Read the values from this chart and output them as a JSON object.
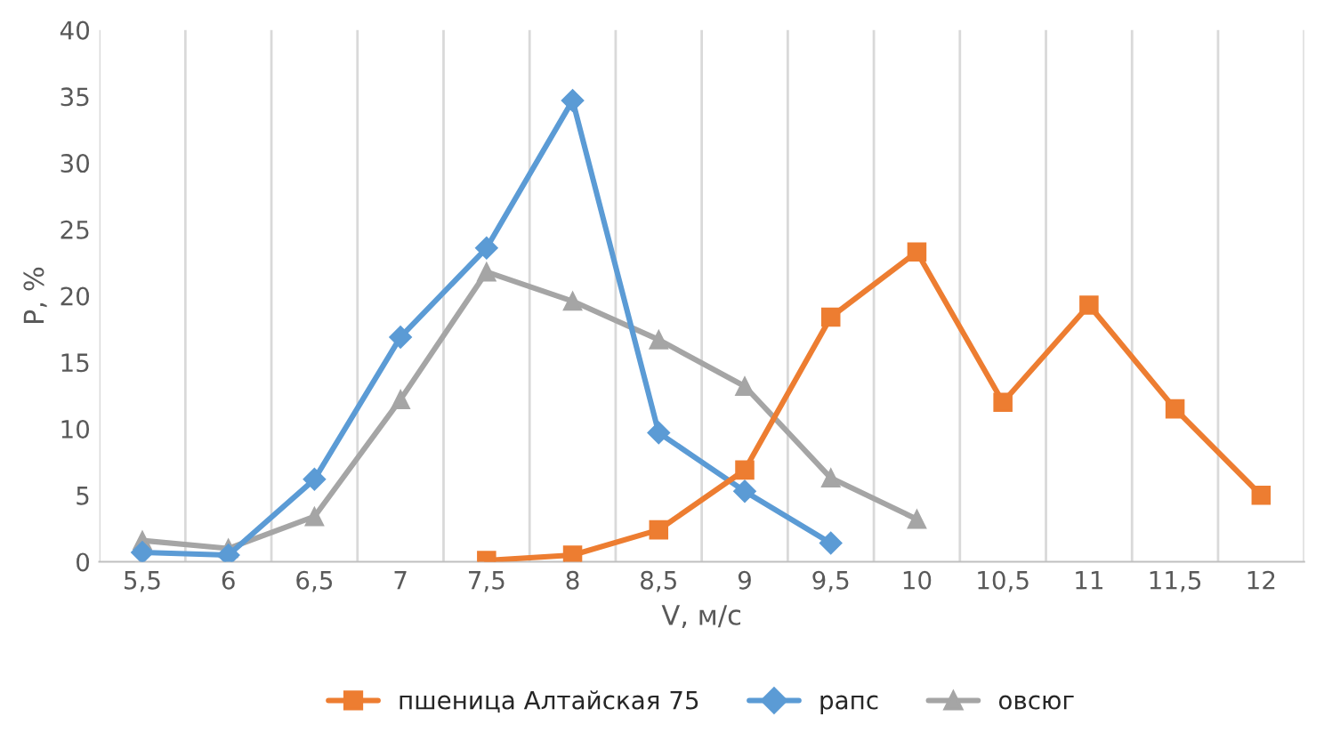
{
  "chart_data": {
    "type": "line",
    "xlabel": "V, м/с",
    "ylabel": "P, %",
    "categories": [
      "5,5",
      "6",
      "6,5",
      "7",
      "7,5",
      "8",
      "8,5",
      "9",
      "9,5",
      "10",
      "10,5",
      "11",
      "11,5",
      "12"
    ],
    "ylim": [
      0,
      40
    ],
    "yticks": [
      0,
      5,
      10,
      15,
      20,
      25,
      30,
      35,
      40
    ],
    "grid": "x",
    "legend": "bottom",
    "series": [
      {
        "name": "пшеница Алтайская 75",
        "color": "#ed7d31",
        "marker": "square",
        "values": [
          null,
          null,
          null,
          null,
          0.1,
          0.5,
          2.4,
          6.9,
          18.4,
          23.3,
          12.0,
          19.3,
          11.5,
          5.0
        ]
      },
      {
        "name": "рапс",
        "color": "#5b9bd5",
        "marker": "diamond",
        "values": [
          0.7,
          0.5,
          6.2,
          16.9,
          23.6,
          34.7,
          9.7,
          5.3,
          1.4,
          null,
          null,
          null,
          null,
          null
        ]
      },
      {
        "name": "овсюг",
        "color": "#a5a5a5",
        "marker": "triangle",
        "values": [
          1.6,
          1.0,
          3.4,
          12.2,
          21.8,
          19.6,
          16.7,
          13.2,
          6.3,
          3.2,
          null,
          null,
          null,
          null
        ]
      }
    ]
  }
}
